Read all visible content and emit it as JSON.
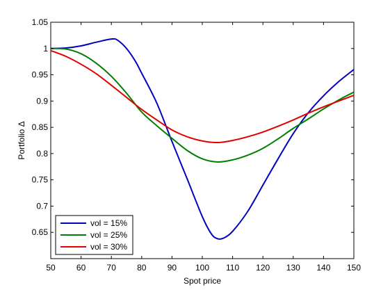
{
  "chart_data": {
    "type": "line",
    "title": "",
    "xlabel": "Spot price",
    "ylabel": "Portfolio Δ",
    "xlim": [
      50,
      150
    ],
    "ylim": [
      0.6,
      1.05
    ],
    "x_ticks": [
      50,
      60,
      70,
      80,
      90,
      100,
      110,
      120,
      130,
      140,
      150
    ],
    "x_tick_labels": [
      "50",
      "60",
      "70",
      "80",
      "90",
      "100",
      "110",
      "120",
      "130",
      "140",
      "150"
    ],
    "y_ticks": [
      0.65,
      0.7,
      0.75,
      0.8,
      0.85,
      0.9,
      0.95,
      1,
      1.05
    ],
    "y_tick_labels": [
      "0.65",
      "0.7",
      "0.75",
      "0.8",
      "0.85",
      "0.9",
      "0.95",
      "1",
      "1.05"
    ],
    "grid": false,
    "legend_position": "bottom-left",
    "series": [
      {
        "name": "vol = 15%",
        "color": "#0000bf",
        "x": [
          50,
          55,
          60,
          65,
          70,
          72,
          75,
          78,
          80,
          85,
          90,
          95,
          100,
          103,
          105,
          107,
          110,
          115,
          120,
          125,
          130,
          135,
          140,
          145,
          150
        ],
        "y": [
          1.0,
          1.001,
          1.005,
          1.012,
          1.018,
          1.016,
          1.0,
          0.975,
          0.953,
          0.896,
          0.823,
          0.752,
          0.68,
          0.647,
          0.638,
          0.639,
          0.652,
          0.69,
          0.74,
          0.79,
          0.838,
          0.878,
          0.91,
          0.937,
          0.96
        ]
      },
      {
        "name": "vol = 25%",
        "color": "#007f00",
        "x": [
          50,
          55,
          60,
          65,
          70,
          75,
          80,
          85,
          90,
          95,
          100,
          105,
          110,
          115,
          120,
          125,
          130,
          135,
          140,
          145,
          150
        ],
        "y": [
          1.0,
          0.999,
          0.99,
          0.972,
          0.947,
          0.915,
          0.879,
          0.853,
          0.829,
          0.806,
          0.79,
          0.784,
          0.788,
          0.797,
          0.81,
          0.828,
          0.848,
          0.866,
          0.885,
          0.902,
          0.917
        ]
      },
      {
        "name": "vol = 30%",
        "color": "#e00000",
        "x": [
          50,
          55,
          60,
          65,
          70,
          75,
          80,
          85,
          90,
          95,
          100,
          105,
          110,
          115,
          120,
          125,
          130,
          135,
          140,
          145,
          150
        ],
        "y": [
          0.996,
          0.985,
          0.97,
          0.952,
          0.93,
          0.907,
          0.884,
          0.864,
          0.845,
          0.832,
          0.824,
          0.821,
          0.825,
          0.832,
          0.841,
          0.852,
          0.864,
          0.877,
          0.889,
          0.9,
          0.911
        ]
      }
    ]
  }
}
